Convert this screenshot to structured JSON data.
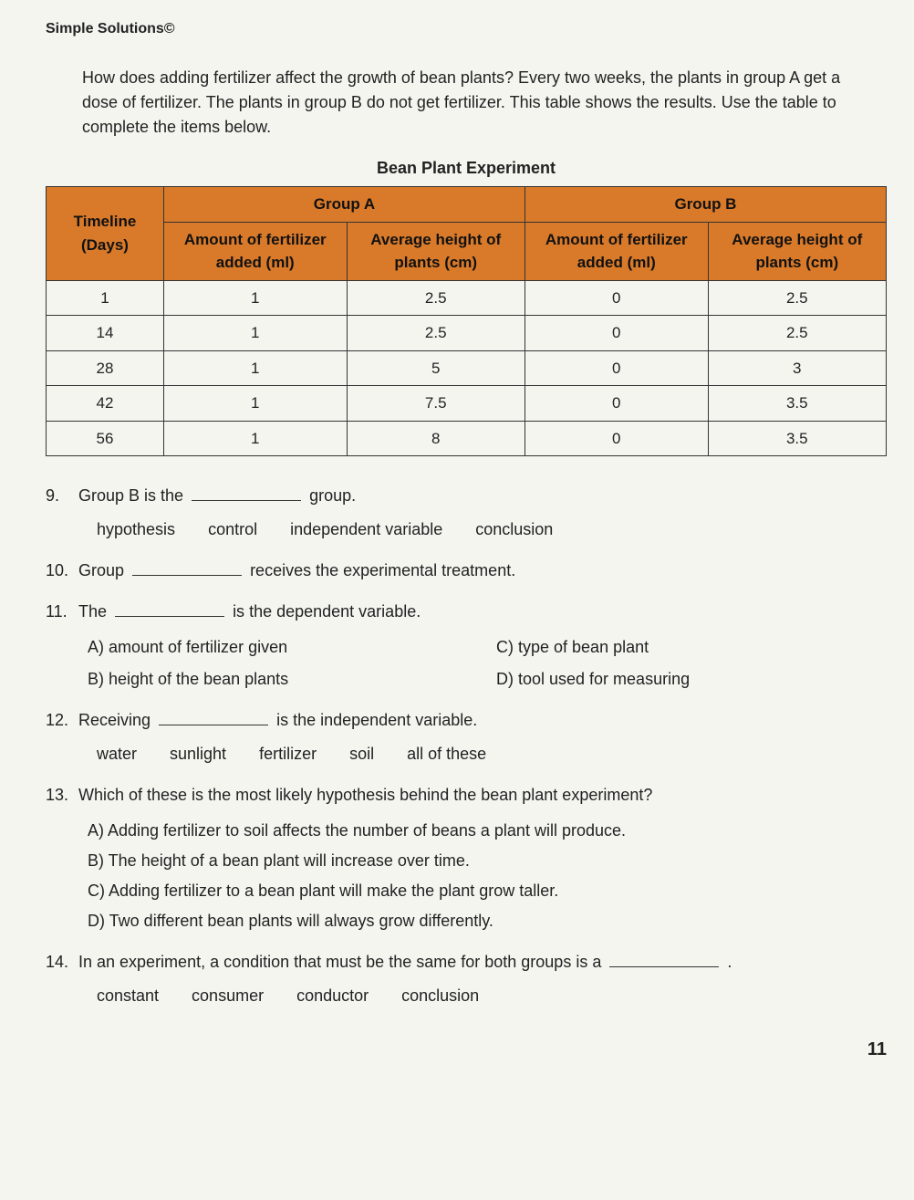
{
  "brand": "Simple Solutions©",
  "intro": "How does adding fertilizer affect the growth of bean plants? Every two weeks, the plants in group A get a dose of fertilizer. The plants in group B do not get fertilizer. This table shows the results. Use the table to complete the items below.",
  "table": {
    "title": "Bean Plant Experiment",
    "header_timeline": "Timeline (Days)",
    "group_a_label": "Group A",
    "group_b_label": "Group B",
    "col_a1": "Amount of fertilizer added (ml)",
    "col_a2": "Average height of plants (cm)",
    "col_b1": "Amount of fertilizer added (ml)",
    "col_b2": "Average height of plants (cm)",
    "header_bg": "#d97a2a",
    "border_color": "#333333",
    "rows": [
      {
        "day": "1",
        "a_fert": "1",
        "a_ht": "2.5",
        "b_fert": "0",
        "b_ht": "2.5"
      },
      {
        "day": "14",
        "a_fert": "1",
        "a_ht": "2.5",
        "b_fert": "0",
        "b_ht": "2.5"
      },
      {
        "day": "28",
        "a_fert": "1",
        "a_ht": "5",
        "b_fert": "0",
        "b_ht": "3"
      },
      {
        "day": "42",
        "a_fert": "1",
        "a_ht": "7.5",
        "b_fert": "0",
        "b_ht": "3.5"
      },
      {
        "day": "56",
        "a_fert": "1",
        "a_ht": "8",
        "b_fert": "0",
        "b_ht": "3.5"
      }
    ]
  },
  "q9": {
    "num": "9.",
    "text_before": "Group B is the",
    "text_after": "group.",
    "choices": [
      "hypothesis",
      "control",
      "independent variable",
      "conclusion"
    ]
  },
  "q10": {
    "num": "10.",
    "text_before": "Group",
    "text_after": "receives the experimental treatment."
  },
  "q11": {
    "num": "11.",
    "text_before": "The",
    "text_after": "is the dependent variable.",
    "choices": {
      "a": "A)  amount of fertilizer given",
      "b": "B)  height of the bean plants",
      "c": "C) type of bean plant",
      "d": "D) tool used for measuring"
    }
  },
  "q12": {
    "num": "12.",
    "text_before": "Receiving",
    "text_after": "is the independent variable.",
    "choices": [
      "water",
      "sunlight",
      "fertilizer",
      "soil",
      "all of these"
    ]
  },
  "q13": {
    "num": "13.",
    "text": "Which of these is the most likely hypothesis behind the bean plant experiment?",
    "choices": {
      "a": "A)  Adding fertilizer to soil affects the number of beans a plant will produce.",
      "b": "B)  The height of a bean plant will increase over time.",
      "c": "C)  Adding fertilizer to a bean plant will make the plant grow taller.",
      "d": "D)  Two different bean plants will always grow differently."
    }
  },
  "q14": {
    "num": "14.",
    "text_before": "In an experiment, a condition that must be the same for both groups is a",
    "text_after": ".",
    "choices": [
      "constant",
      "consumer",
      "conductor",
      "conclusion"
    ]
  },
  "page_number": "11"
}
